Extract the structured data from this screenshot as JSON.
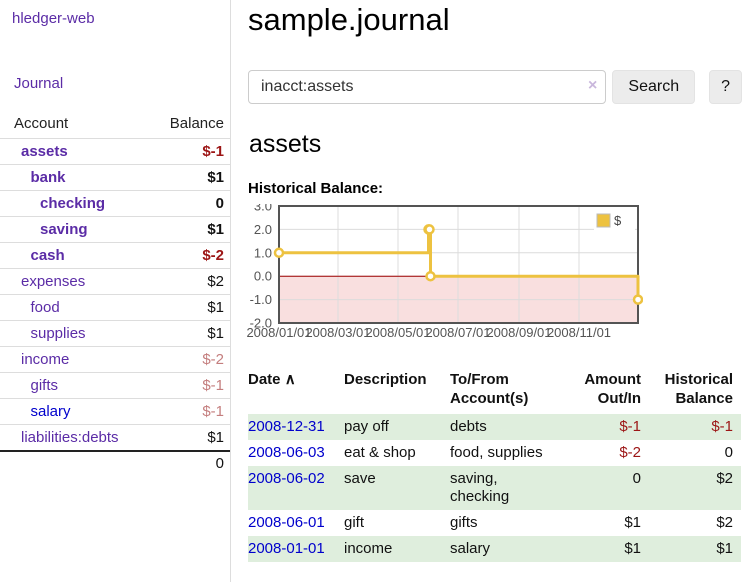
{
  "colors": {
    "link_purple": "#5b2ca6",
    "link_blue": "#0000cc",
    "negative_strong": "#9c1515",
    "negative_soft": "#c47e7e",
    "row_stripe_green": "#dfeedd",
    "chart_gold": "#edc240",
    "chart_negative_region": "#f9dfdf",
    "chart_zero_line": "#a00000",
    "chart_frame": "#545454",
    "chart_grid": "#dcdcdc"
  },
  "app": {
    "brand": "hledger-web",
    "nav_journal_label": "Journal"
  },
  "sidebar": {
    "header": {
      "account": "Account",
      "balance": "Balance"
    },
    "accounts": [
      {
        "name": "assets",
        "depth": 0,
        "bold": true,
        "balance": "$-1",
        "balance_tone": "negative-strong"
      },
      {
        "name": "bank",
        "depth": 1,
        "bold": true,
        "balance": "$1"
      },
      {
        "name": "checking",
        "depth": 2,
        "bold": true,
        "balance": "0"
      },
      {
        "name": "saving",
        "depth": 2,
        "bold": true,
        "balance": "$1"
      },
      {
        "name": "cash",
        "depth": 1,
        "bold": true,
        "balance": "$-2",
        "balance_tone": "negative-strong"
      },
      {
        "name": "expenses",
        "depth": 0,
        "bold": false,
        "balance": "$2"
      },
      {
        "name": "food",
        "depth": 1,
        "bold": false,
        "balance": "$1"
      },
      {
        "name": "supplies",
        "depth": 1,
        "bold": false,
        "balance": "$1"
      },
      {
        "name": "income",
        "depth": 0,
        "bold": false,
        "balance": "$-2",
        "balance_tone": "negative-soft"
      },
      {
        "name": "gifts",
        "depth": 1,
        "bold": false,
        "balance": "$-1",
        "balance_tone": "negative-soft"
      },
      {
        "name": "salary",
        "depth": 1,
        "bold": false,
        "balance": "$-1",
        "balance_tone": "negative-soft",
        "link_tone": "blue"
      },
      {
        "name": "liabilities:debts",
        "depth": 0,
        "bold": false,
        "balance": "$1"
      }
    ],
    "total": "0"
  },
  "header": {
    "title": "sample.journal"
  },
  "search": {
    "value": "inacct:assets",
    "clear_icon": "×",
    "button_label": "Search",
    "help_label": "?"
  },
  "account_page": {
    "heading": "assets",
    "chart_title": "Historical Balance:"
  },
  "chart_data": {
    "type": "line",
    "style": "step",
    "title": "Historical Balance",
    "x_range": [
      "2008/01/01",
      "2008/12/31"
    ],
    "ylim": [
      -2,
      3
    ],
    "y_ticks": [
      "3.0",
      "2.0",
      "1.0",
      "0.0",
      "-1.0",
      "-2.0"
    ],
    "x_ticks": [
      "2008/01/01",
      "2008/03/01",
      "2008/05/01",
      "2008/07/01",
      "2008/09/01",
      "2008/11/01"
    ],
    "grid": true,
    "legend_position": "top-right",
    "series": [
      {
        "name": "$",
        "points": [
          {
            "date": "2008/01/01",
            "value": 1
          },
          {
            "date": "2008/06/01",
            "value": 2
          },
          {
            "date": "2008/06/02",
            "value": 2
          },
          {
            "date": "2008/06/03",
            "value": 0
          },
          {
            "date": "2008/12/31",
            "value": -1
          }
        ]
      }
    ]
  },
  "register": {
    "columns": [
      {
        "lines": [
          "Date"
        ],
        "sort_icon": "∧",
        "align": "left"
      },
      {
        "lines": [
          "Description"
        ],
        "align": "left"
      },
      {
        "lines": [
          "To/From",
          "Account(s)"
        ],
        "align": "left"
      },
      {
        "lines": [
          "Amount",
          "Out/In"
        ],
        "align": "right"
      },
      {
        "lines": [
          "Historical",
          "Balance"
        ],
        "align": "right"
      }
    ],
    "rows": [
      {
        "date": "2008-12-31",
        "description": "pay off",
        "to_from": [
          "debts"
        ],
        "amount": "$-1",
        "amount_tone": "negative",
        "balance": "$-1",
        "balance_tone": "negative"
      },
      {
        "date": "2008-06-03",
        "description": "eat & shop",
        "to_from": [
          "food, supplies"
        ],
        "amount": "$-2",
        "amount_tone": "negative",
        "balance": "0"
      },
      {
        "date": "2008-06-02",
        "description": "save",
        "to_from": [
          "saving,",
          "checking"
        ],
        "amount": "0",
        "balance": "$2"
      },
      {
        "date": "2008-06-01",
        "description": "gift",
        "to_from": [
          "gifts"
        ],
        "amount": "$1",
        "balance": "$2"
      },
      {
        "date": "2008-01-01",
        "description": "income",
        "to_from": [
          "salary"
        ],
        "amount": "$1",
        "balance": "$1"
      }
    ]
  }
}
